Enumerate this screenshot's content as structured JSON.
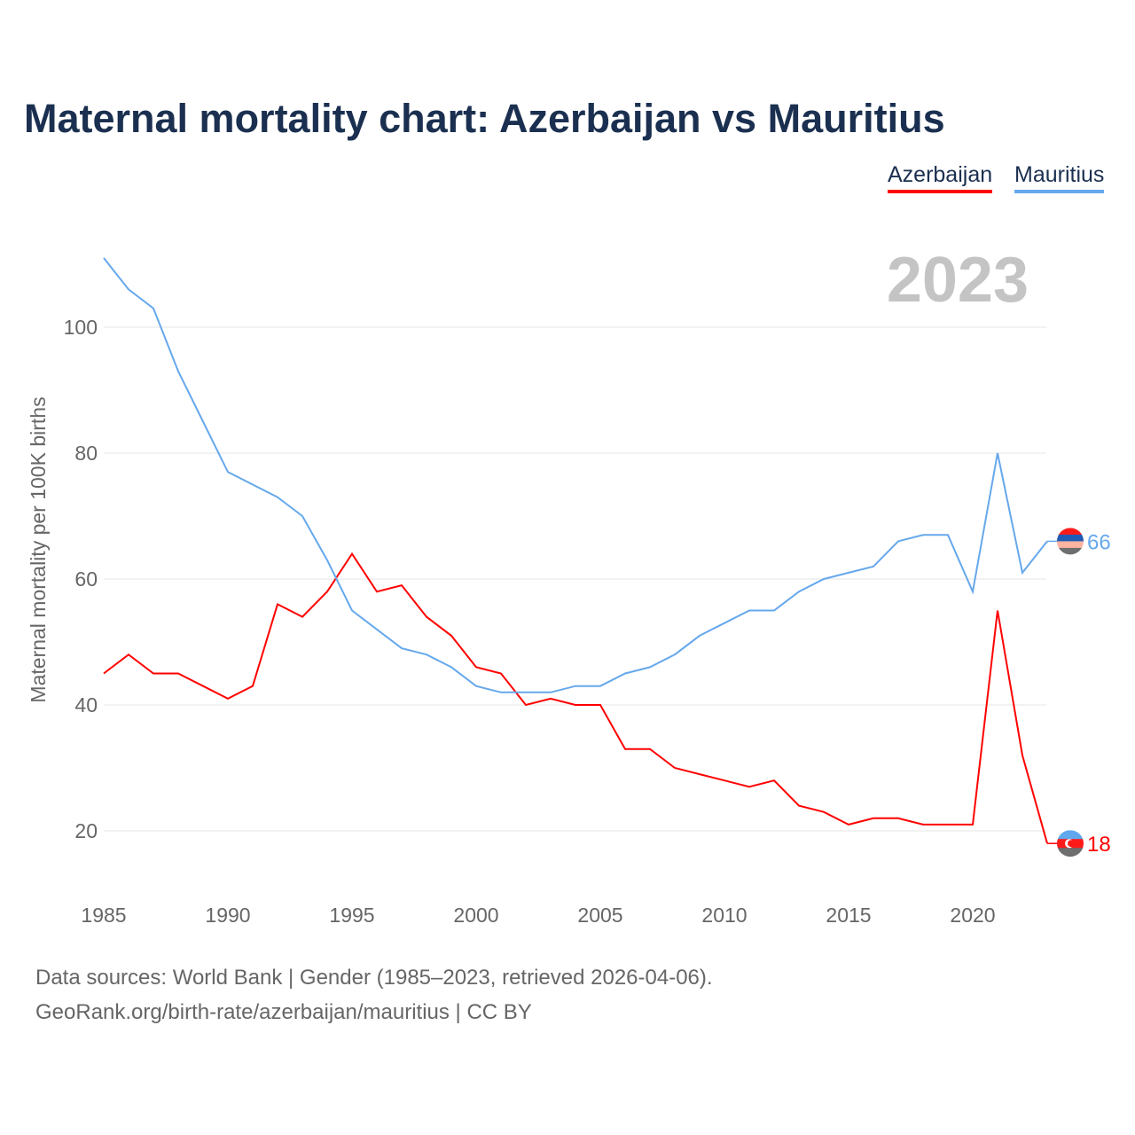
{
  "title": "Maternal mortality chart: Azerbaijan vs Mauritius",
  "sources": [
    "Data sources: World Bank | Gender (1985–2023, retrieved 2026-04-06).",
    "GeoRank.org/birth-rate/azerbaijan/mauritius | CC BY"
  ],
  "chart_data": {
    "type": "line",
    "title": "Maternal mortality chart: Azerbaijan vs Mauritius",
    "ylabel": "Maternal mortality per 100K births",
    "xlabel": "",
    "year_label": "2023",
    "xlim": [
      1985,
      2023
    ],
    "ylim": [
      10,
      115
    ],
    "x_ticks": [
      1985,
      1990,
      1995,
      2000,
      2005,
      2010,
      2015,
      2020
    ],
    "y_ticks": [
      20,
      40,
      60,
      80,
      100
    ],
    "legend_position": "top-right",
    "x": [
      1985,
      1986,
      1987,
      1988,
      1989,
      1990,
      1991,
      1992,
      1993,
      1994,
      1995,
      1996,
      1997,
      1998,
      1999,
      2000,
      2001,
      2002,
      2003,
      2004,
      2005,
      2006,
      2007,
      2008,
      2009,
      2010,
      2011,
      2012,
      2013,
      2014,
      2015,
      2016,
      2017,
      2018,
      2019,
      2020,
      2021,
      2022,
      2023
    ],
    "series": [
      {
        "name": "Azerbaijan",
        "color": "#ff0000",
        "end_label": "18",
        "values": [
          45,
          48,
          45,
          45,
          43,
          41,
          43,
          56,
          54,
          58,
          64,
          58,
          59,
          54,
          51,
          46,
          45,
          40,
          41,
          40,
          40,
          33,
          33,
          30,
          29,
          28,
          27,
          28,
          24,
          23,
          21,
          22,
          22,
          21,
          21,
          21,
          55,
          32,
          18
        ]
      },
      {
        "name": "Mauritius",
        "color": "#66a8ec",
        "end_label": "66",
        "values": [
          111,
          106,
          103,
          93,
          85,
          77,
          75,
          73,
          70,
          63,
          55,
          52,
          49,
          48,
          46,
          43,
          42,
          42,
          42,
          43,
          43,
          45,
          46,
          48,
          51,
          53,
          55,
          55,
          58,
          60,
          61,
          62,
          66,
          67,
          67,
          58,
          80,
          61,
          66
        ]
      }
    ]
  }
}
